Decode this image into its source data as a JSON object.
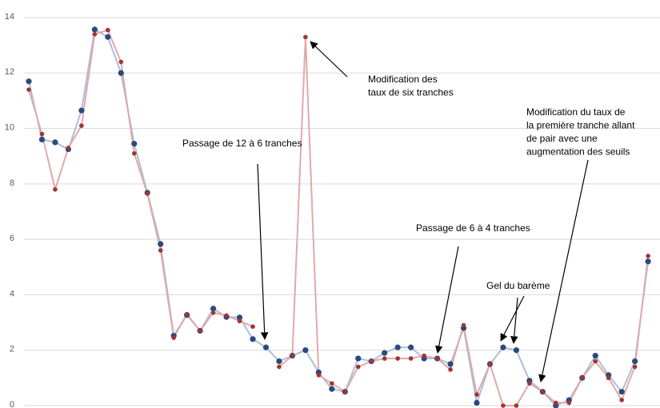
{
  "chart_data": {
    "type": "line",
    "ylim": [
      0,
      14
    ],
    "yticks": [
      0,
      2,
      4,
      6,
      8,
      10,
      12,
      14
    ],
    "grid": true,
    "series": [
      {
        "color": "#2b4a7c",
        "line_color": "#a9bfdc",
        "values": [
          11.7,
          9.6,
          9.5,
          9.25,
          10.65,
          13.57,
          13.3,
          12.0,
          9.45,
          7.68,
          5.83,
          2.52,
          3.27,
          2.7,
          3.5,
          3.2,
          3.18,
          2.4,
          2.1,
          1.6,
          1.8,
          2.0,
          1.2,
          0.6,
          0.5,
          1.7,
          1.6,
          1.9,
          2.1,
          2.1,
          1.7,
          1.7,
          1.5,
          2.8,
          0.1,
          1.5,
          2.1,
          2.0,
          0.9,
          0.5,
          0.0,
          0.2,
          1.0,
          1.8,
          1.1,
          0.5,
          1.6,
          5.2
        ]
      },
      {
        "color": "#a33434",
        "line_color": "#e3a9a9",
        "values": [
          11.4,
          9.8,
          7.8,
          9.3,
          10.1,
          13.4,
          13.55,
          12.4,
          9.1,
          7.65,
          5.6,
          2.45,
          3.3,
          2.7,
          3.35,
          3.25,
          3.05,
          2.85,
          null,
          1.4,
          1.8,
          13.3,
          1.1,
          0.8,
          0.5,
          1.4,
          1.6,
          1.7,
          1.7,
          1.7,
          1.8,
          1.7,
          1.3,
          2.9,
          0.4,
          1.5,
          0.0,
          0.0,
          0.8,
          0.5,
          0.1,
          0.1,
          1.0,
          1.6,
          1.0,
          0.2,
          1.4,
          5.4
        ]
      }
    ],
    "annotations": [
      {
        "text": [
          "Modification des",
          "taux de six tranches"
        ]
      },
      {
        "text": [
          "Passage de 12 à 6 tranches"
        ]
      },
      {
        "text": [
          "Passage de 6 à 4 tranches"
        ]
      },
      {
        "text": [
          "Modification du taux de",
          "la première tranche allant",
          "de pair avec une",
          "augmentation des seuils"
        ]
      },
      {
        "text": [
          "Gel du barème"
        ]
      }
    ]
  }
}
